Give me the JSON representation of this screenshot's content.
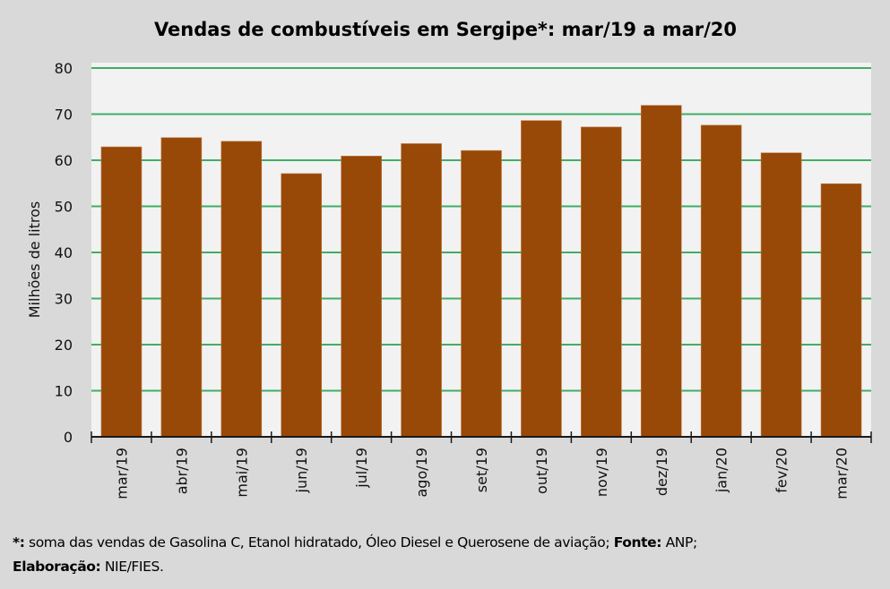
{
  "chart_data": {
    "type": "bar",
    "title": "Vendas de combustíveis em Sergipe*: mar/19 a mar/20",
    "xlabel": "",
    "ylabel": "Milhões de litros",
    "ylim": [
      0,
      80
    ],
    "yticks": [
      "0",
      "10",
      "20",
      "30",
      "40",
      "50",
      "60",
      "70",
      "80"
    ],
    "grid": true,
    "categories": [
      "mar/19",
      "abr/19",
      "mai/19",
      "jun/19",
      "jul/19",
      "ago/19",
      "set/19",
      "out/19",
      "nov/19",
      "dez/19",
      "jan/20",
      "fev/20",
      "mar/20"
    ],
    "values": [
      62.9,
      64.9,
      64.1,
      57.1,
      60.9,
      63.6,
      62.1,
      68.6,
      67.2,
      71.9,
      67.6,
      61.6,
      54.9
    ],
    "colors": {
      "bar": "#984807",
      "grid": "#3fae66",
      "plot_background": "#f2f2f2",
      "background": "#d9d9d9"
    }
  },
  "footnote": {
    "asterisk_label": "*:",
    "asterisk_text": " soma das vendas de Gasolina C, Etanol hidratado, Óleo Diesel e Querosene de aviação; ",
    "source_label": "Fonte:",
    "source_text": " ANP;",
    "elaboration_label": "Elaboração:",
    "elaboration_text": " NIE/FIES."
  }
}
